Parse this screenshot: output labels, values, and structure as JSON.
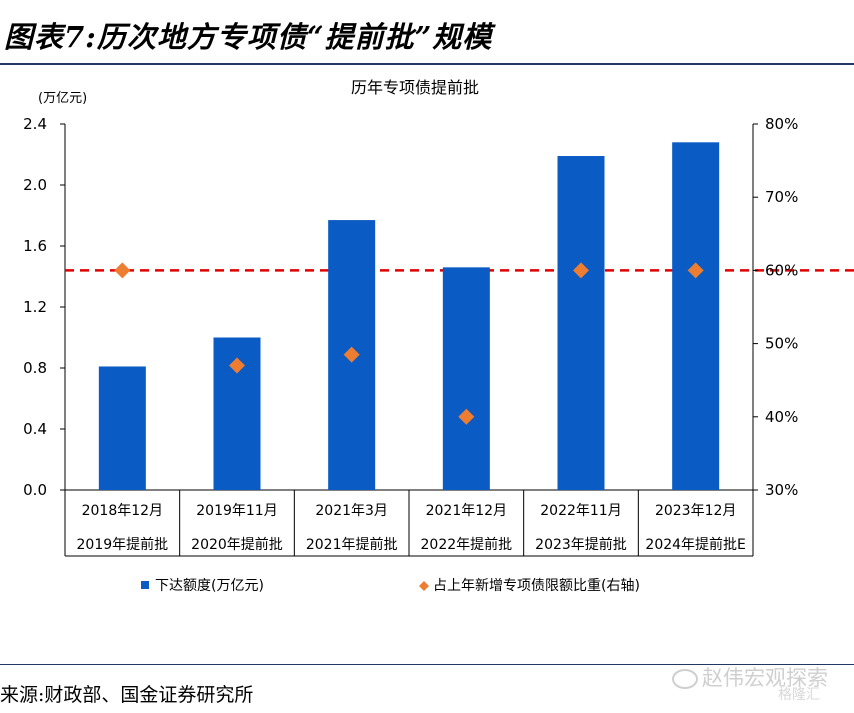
{
  "figure_title": "图表7:历次地方专项债“提前批”规模",
  "source": "来源:财政部、国金证券研究所",
  "watermark": {
    "main": "赵伟宏观探索",
    "sub": "格隆汇"
  },
  "colors": {
    "bar": "#0a5bc4",
    "marker": "#ed7d31",
    "ref_line": "#e00000",
    "rule": "#1f3864"
  },
  "chart_data": {
    "type": "bar",
    "title": "历年专项债提前批",
    "y_left": {
      "label": "(万亿元)",
      "min": 0,
      "max": 2.4,
      "ticks": [
        "0.0",
        "0.4",
        "0.8",
        "1.2",
        "1.6",
        "2.0",
        "2.4"
      ]
    },
    "y_right": {
      "min": 30,
      "max": 80,
      "ticks": [
        "30%",
        "40%",
        "50%",
        "60%",
        "70%",
        "80%"
      ]
    },
    "categories": [
      {
        "top": "2018年12月",
        "bottom": "2019年提前批"
      },
      {
        "top": "2019年11月",
        "bottom": "2020年提前批"
      },
      {
        "top": "2021年3月",
        "bottom": "2021年提前批"
      },
      {
        "top": "2021年12月",
        "bottom": "2022年提前批"
      },
      {
        "top": "2022年11月",
        "bottom": "2023年提前批"
      },
      {
        "top": "2023年12月",
        "bottom": "2024年提前批E"
      }
    ],
    "series": [
      {
        "name": "下达额度(万亿元)",
        "type": "bar",
        "axis": "left",
        "values": [
          0.81,
          1.0,
          1.77,
          1.46,
          2.19,
          2.28
        ]
      },
      {
        "name": "占上年新增专项债限额比重(右轴)",
        "type": "scatter",
        "axis": "right",
        "values": [
          60,
          47,
          48.5,
          40,
          60,
          60
        ]
      }
    ],
    "reference_line": {
      "axis": "right",
      "value": 60,
      "style": "dashed"
    },
    "legend_position": "bottom"
  }
}
